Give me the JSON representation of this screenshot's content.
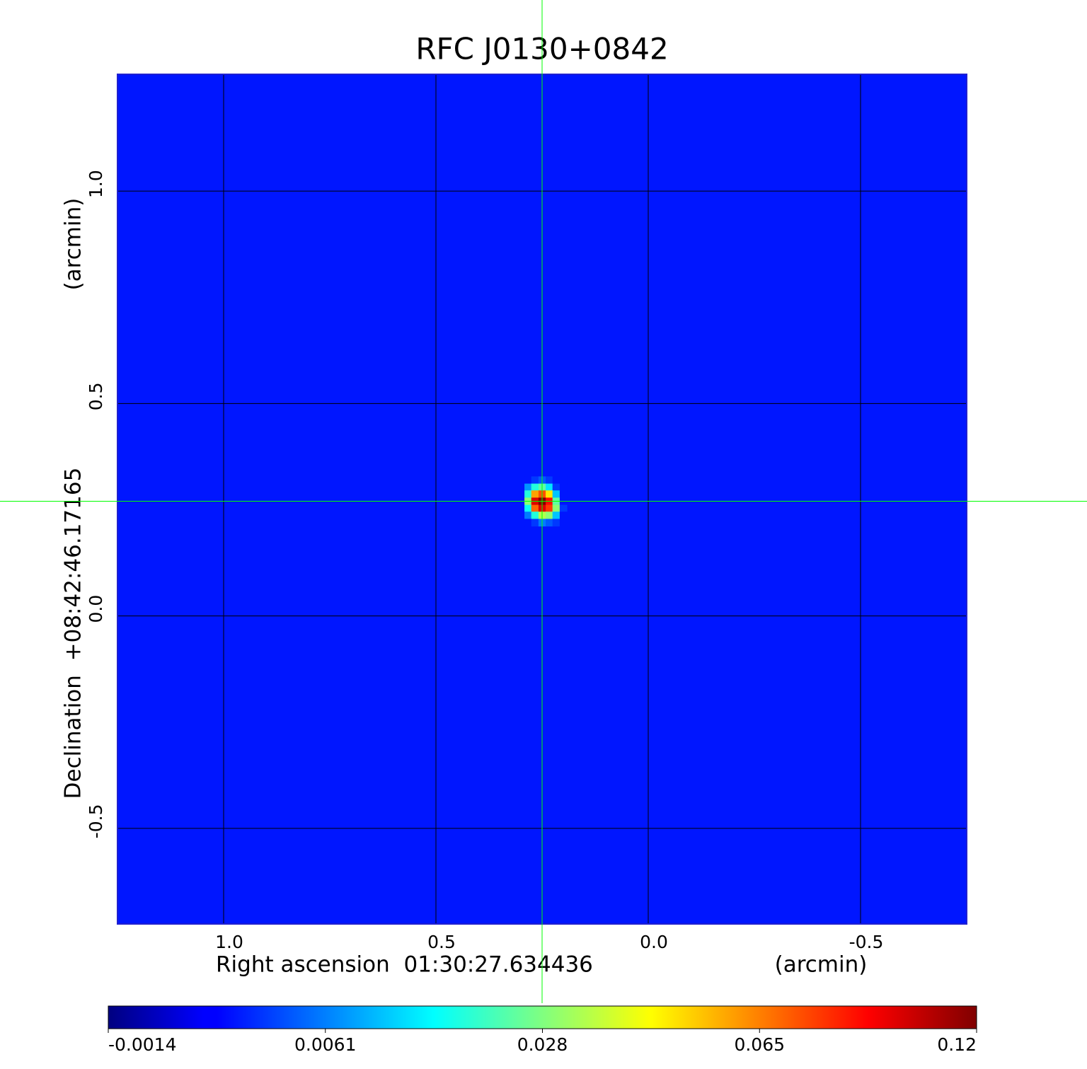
{
  "chart_data": {
    "type": "image",
    "title": "RFC J0130+0842",
    "x_label": "Right ascension  01:30:27.634436",
    "x_unit": "(arcmin)",
    "y_label": "Declination  +08:42:46.17165",
    "y_unit": "(arcmin)",
    "xlim": [
      1.25,
      -0.75
    ],
    "ylim": [
      -0.725,
      1.275
    ],
    "xticks": [
      {
        "value": 1,
        "label": "1.0"
      },
      0.5,
      {
        "value": 0,
        "label": "0.0"
      },
      -0.5
    ],
    "yticks": [
      {
        "value": 1,
        "label": "1.0"
      },
      0.5,
      {
        "value": 0,
        "label": "0.0"
      },
      -0.5
    ],
    "grid": true,
    "grid_color": "#000000",
    "frame_color": "#2020d0",
    "title_color": "#1010d0",
    "colormap": "jet",
    "background": 0.003,
    "image": {
      "x": [
        0.3,
        0.283,
        0.267,
        0.25,
        0.233,
        0.217,
        0.2
      ],
      "y": [
        0.32,
        0.303,
        0.287,
        0.27,
        0.253,
        0.237,
        0.22
      ],
      "values": [
        [
          0.003,
          0.003,
          0.004,
          0.005,
          0.004,
          0.003,
          0.003
        ],
        [
          0.003,
          0.008,
          0.02,
          0.025,
          0.015,
          0.004,
          0.003
        ],
        [
          0.003,
          0.02,
          0.06,
          0.075,
          0.05,
          0.012,
          0.003
        ],
        [
          0.003,
          0.03,
          0.1,
          0.12,
          0.09,
          0.025,
          0.003
        ],
        [
          0.003,
          0.018,
          0.07,
          0.1,
          0.08,
          0.03,
          0.004
        ],
        [
          0.003,
          0.006,
          0.02,
          0.035,
          0.03,
          0.012,
          0.003
        ],
        [
          0.003,
          0.003,
          0.004,
          0.006,
          0.005,
          0.004,
          0.003
        ]
      ]
    },
    "crosshair": {
      "x": 0.25,
      "y": 0.27,
      "color": "#00ff00"
    },
    "colorbar": {
      "ticks": [
        -0.0014,
        0.0061,
        0.028,
        0.065,
        0.12
      ]
    }
  }
}
